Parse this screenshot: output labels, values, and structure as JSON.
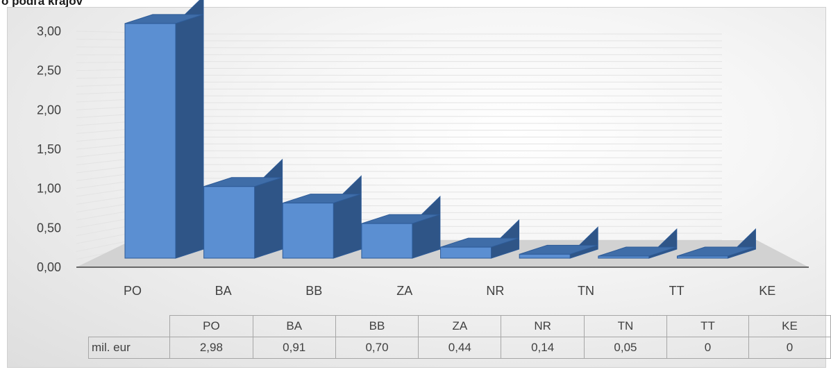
{
  "title": "o podľa krajov",
  "chart_data": {
    "type": "bar",
    "three_d": true,
    "categories": [
      "PO",
      "BA",
      "BB",
      "ZA",
      "NR",
      "TN",
      "TT",
      "KE"
    ],
    "series": [
      {
        "name": "mil. eur",
        "values": [
          2.98,
          0.91,
          0.7,
          0.44,
          0.14,
          0.05,
          0,
          0
        ]
      }
    ],
    "value_labels": [
      "2,98",
      "0,91",
      "0,70",
      "0,44",
      "0,14",
      "0,05",
      "0",
      "0"
    ],
    "y_ticks": [
      "0,00",
      "0,50",
      "1,00",
      "1,50",
      "2,00",
      "2,50",
      "3,00"
    ],
    "ylim": [
      0,
      3
    ],
    "grid": true,
    "legend": "none",
    "data_table": true,
    "colors": {
      "bar_front": "#5b8fd2",
      "bar_side": "#2f5587",
      "bar_top": "#3f6da8",
      "bar_edge": "#2e5b97",
      "floor": "#d2d2d2",
      "grid": "#e3e3e3"
    }
  },
  "table": {
    "row_label": "mil. eur",
    "headers": [
      "PO",
      "BA",
      "BB",
      "ZA",
      "NR",
      "TN",
      "TT",
      "KE"
    ],
    "values": [
      "2,98",
      "0,91",
      "0,70",
      "0,44",
      "0,14",
      "0,05",
      "0",
      "0"
    ]
  }
}
